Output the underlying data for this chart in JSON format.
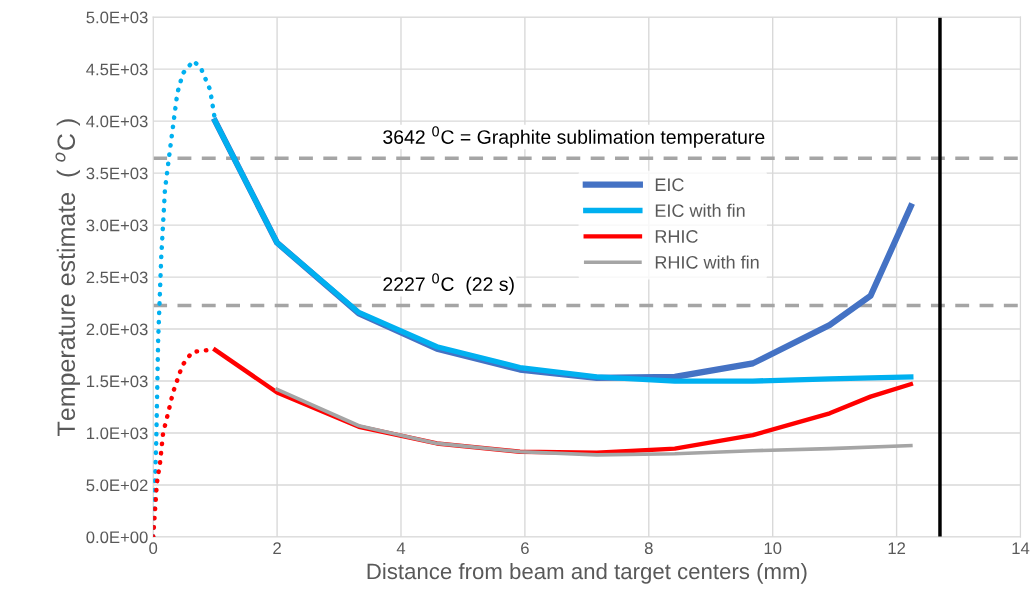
{
  "chart_data": {
    "type": "line",
    "xlabel": "Distance from beam and target centers (mm)",
    "ylabel": "Temperature estimate  ( $^{o}$C )",
    "xlim": [
      0,
      14
    ],
    "xticks": [
      0,
      2,
      4,
      6,
      8,
      10,
      12,
      14
    ],
    "ylim": [
      0,
      5000
    ],
    "yticks": [
      {
        "value": 0,
        "label": "0.0E+00"
      },
      {
        "value": 500,
        "label": "5.0E+02"
      },
      {
        "value": 1000,
        "label": "1.0E+03"
      },
      {
        "value": 1500,
        "label": "1.5E+03"
      },
      {
        "value": 2000,
        "label": "2.0E+03"
      },
      {
        "value": 2500,
        "label": "2.5E+03"
      },
      {
        "value": 3000,
        "label": "3.0E+03"
      },
      {
        "value": 3500,
        "label": "3.5E+03"
      },
      {
        "value": 4000,
        "label": "4.0E+03"
      },
      {
        "value": 4500,
        "label": "4.5E+03"
      },
      {
        "value": 5000,
        "label": "5.0E+03"
      }
    ],
    "grid": true,
    "legend": "right",
    "marker": "none",
    "series": [
      {
        "name": "EIC",
        "color": "#4472c4",
        "x": [
          1.0,
          2.0,
          3.32,
          4.58,
          5.92,
          7.16,
          8.42,
          9.68,
          10.92,
          11.58,
          12.23
        ],
        "values": [
          4000,
          2830,
          2150,
          1810,
          1610,
          1530,
          1540,
          1670,
          2040,
          2320,
          3180
        ]
      },
      {
        "name": "EIC with fin",
        "color": "#00b0f0",
        "x": [
          1.0,
          2.0,
          3.32,
          4.58,
          5.92,
          7.16,
          8.42,
          9.68,
          10.92,
          11.58,
          12.23
        ],
        "values": [
          4000,
          2830,
          2160,
          1830,
          1630,
          1540,
          1500,
          1500,
          1520,
          1530,
          1540
        ]
      },
      {
        "name": "RHIC",
        "color": "#ff0000",
        "x": [
          1.0,
          2.0,
          3.32,
          4.58,
          5.92,
          7.16,
          8.42,
          9.68,
          10.92,
          11.58,
          12.23
        ],
        "values": [
          1800,
          1390,
          1060,
          900,
          820,
          810,
          850,
          980,
          1190,
          1350,
          1470
        ]
      },
      {
        "name": "RHIC with fin",
        "color": "#a5a5a5",
        "x": [
          2.0,
          3.32,
          4.58,
          5.92,
          7.16,
          8.42,
          9.68,
          10.92,
          12.23
        ],
        "values": [
          1420,
          1070,
          900,
          820,
          790,
          800,
          830,
          850,
          880
        ]
      },
      {
        "color": "#00b0f0",
        "line_style": "dotted",
        "x": [
          0,
          0.05,
          0.08,
          0.13,
          0.19,
          0.27,
          0.39,
          0.48,
          0.65,
          0.77,
          0.92,
          1.0
        ],
        "values": [
          0,
          930,
          1890,
          2690,
          3340,
          3720,
          4270,
          4460,
          4580,
          4510,
          4300,
          4000
        ]
      },
      {
        "color": "#ff0000",
        "line_style": "dotted",
        "x": [
          0,
          0.06,
          0.11,
          0.16,
          0.24,
          0.32,
          0.47,
          0.63,
          0.92
        ],
        "values": [
          0,
          520,
          710,
          1000,
          1190,
          1390,
          1650,
          1780,
          1800
        ]
      }
    ],
    "ref_lines": [
      {
        "axis": "y",
        "value": 3642,
        "label": "3642 $^{0}$C = Graphite sublimation temperature",
        "color": "#a5a5a5",
        "line_style": "dashed"
      },
      {
        "axis": "y",
        "value": 2227,
        "label": "2227 $^{0}$C  (22 s)",
        "color": "#a5a5a5",
        "line_style": "dashed"
      },
      {
        "axis": "x",
        "value": 12.7,
        "color": "#000000",
        "line_style": "solid"
      }
    ]
  }
}
